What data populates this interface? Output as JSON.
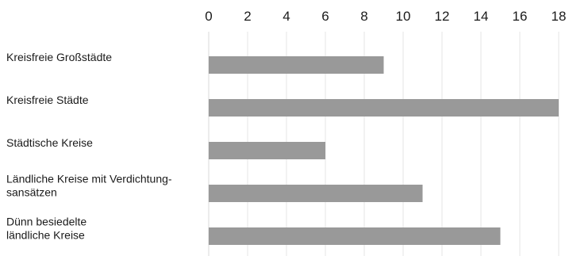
{
  "chart_data": {
    "type": "bar",
    "orientation": "horizontal",
    "categories": [
      [
        "Kreisfreie Großstädte"
      ],
      [
        "Kreisfreie Städte"
      ],
      [
        "Städtische Kreise"
      ],
      [
        "Ländliche Kreise mit Verdichtung-",
        "sansätzen"
      ],
      [
        "Dünn besiedelte",
        "ländliche Kreise"
      ]
    ],
    "values": [
      9,
      18,
      6,
      11,
      15
    ],
    "xlim": [
      0,
      18
    ],
    "xticks": [
      0,
      2,
      4,
      6,
      8,
      10,
      12,
      14,
      16,
      18
    ],
    "tick_position": "top",
    "grid": true,
    "bar_color": "#999999",
    "title": "",
    "xlabel": "",
    "ylabel": ""
  }
}
